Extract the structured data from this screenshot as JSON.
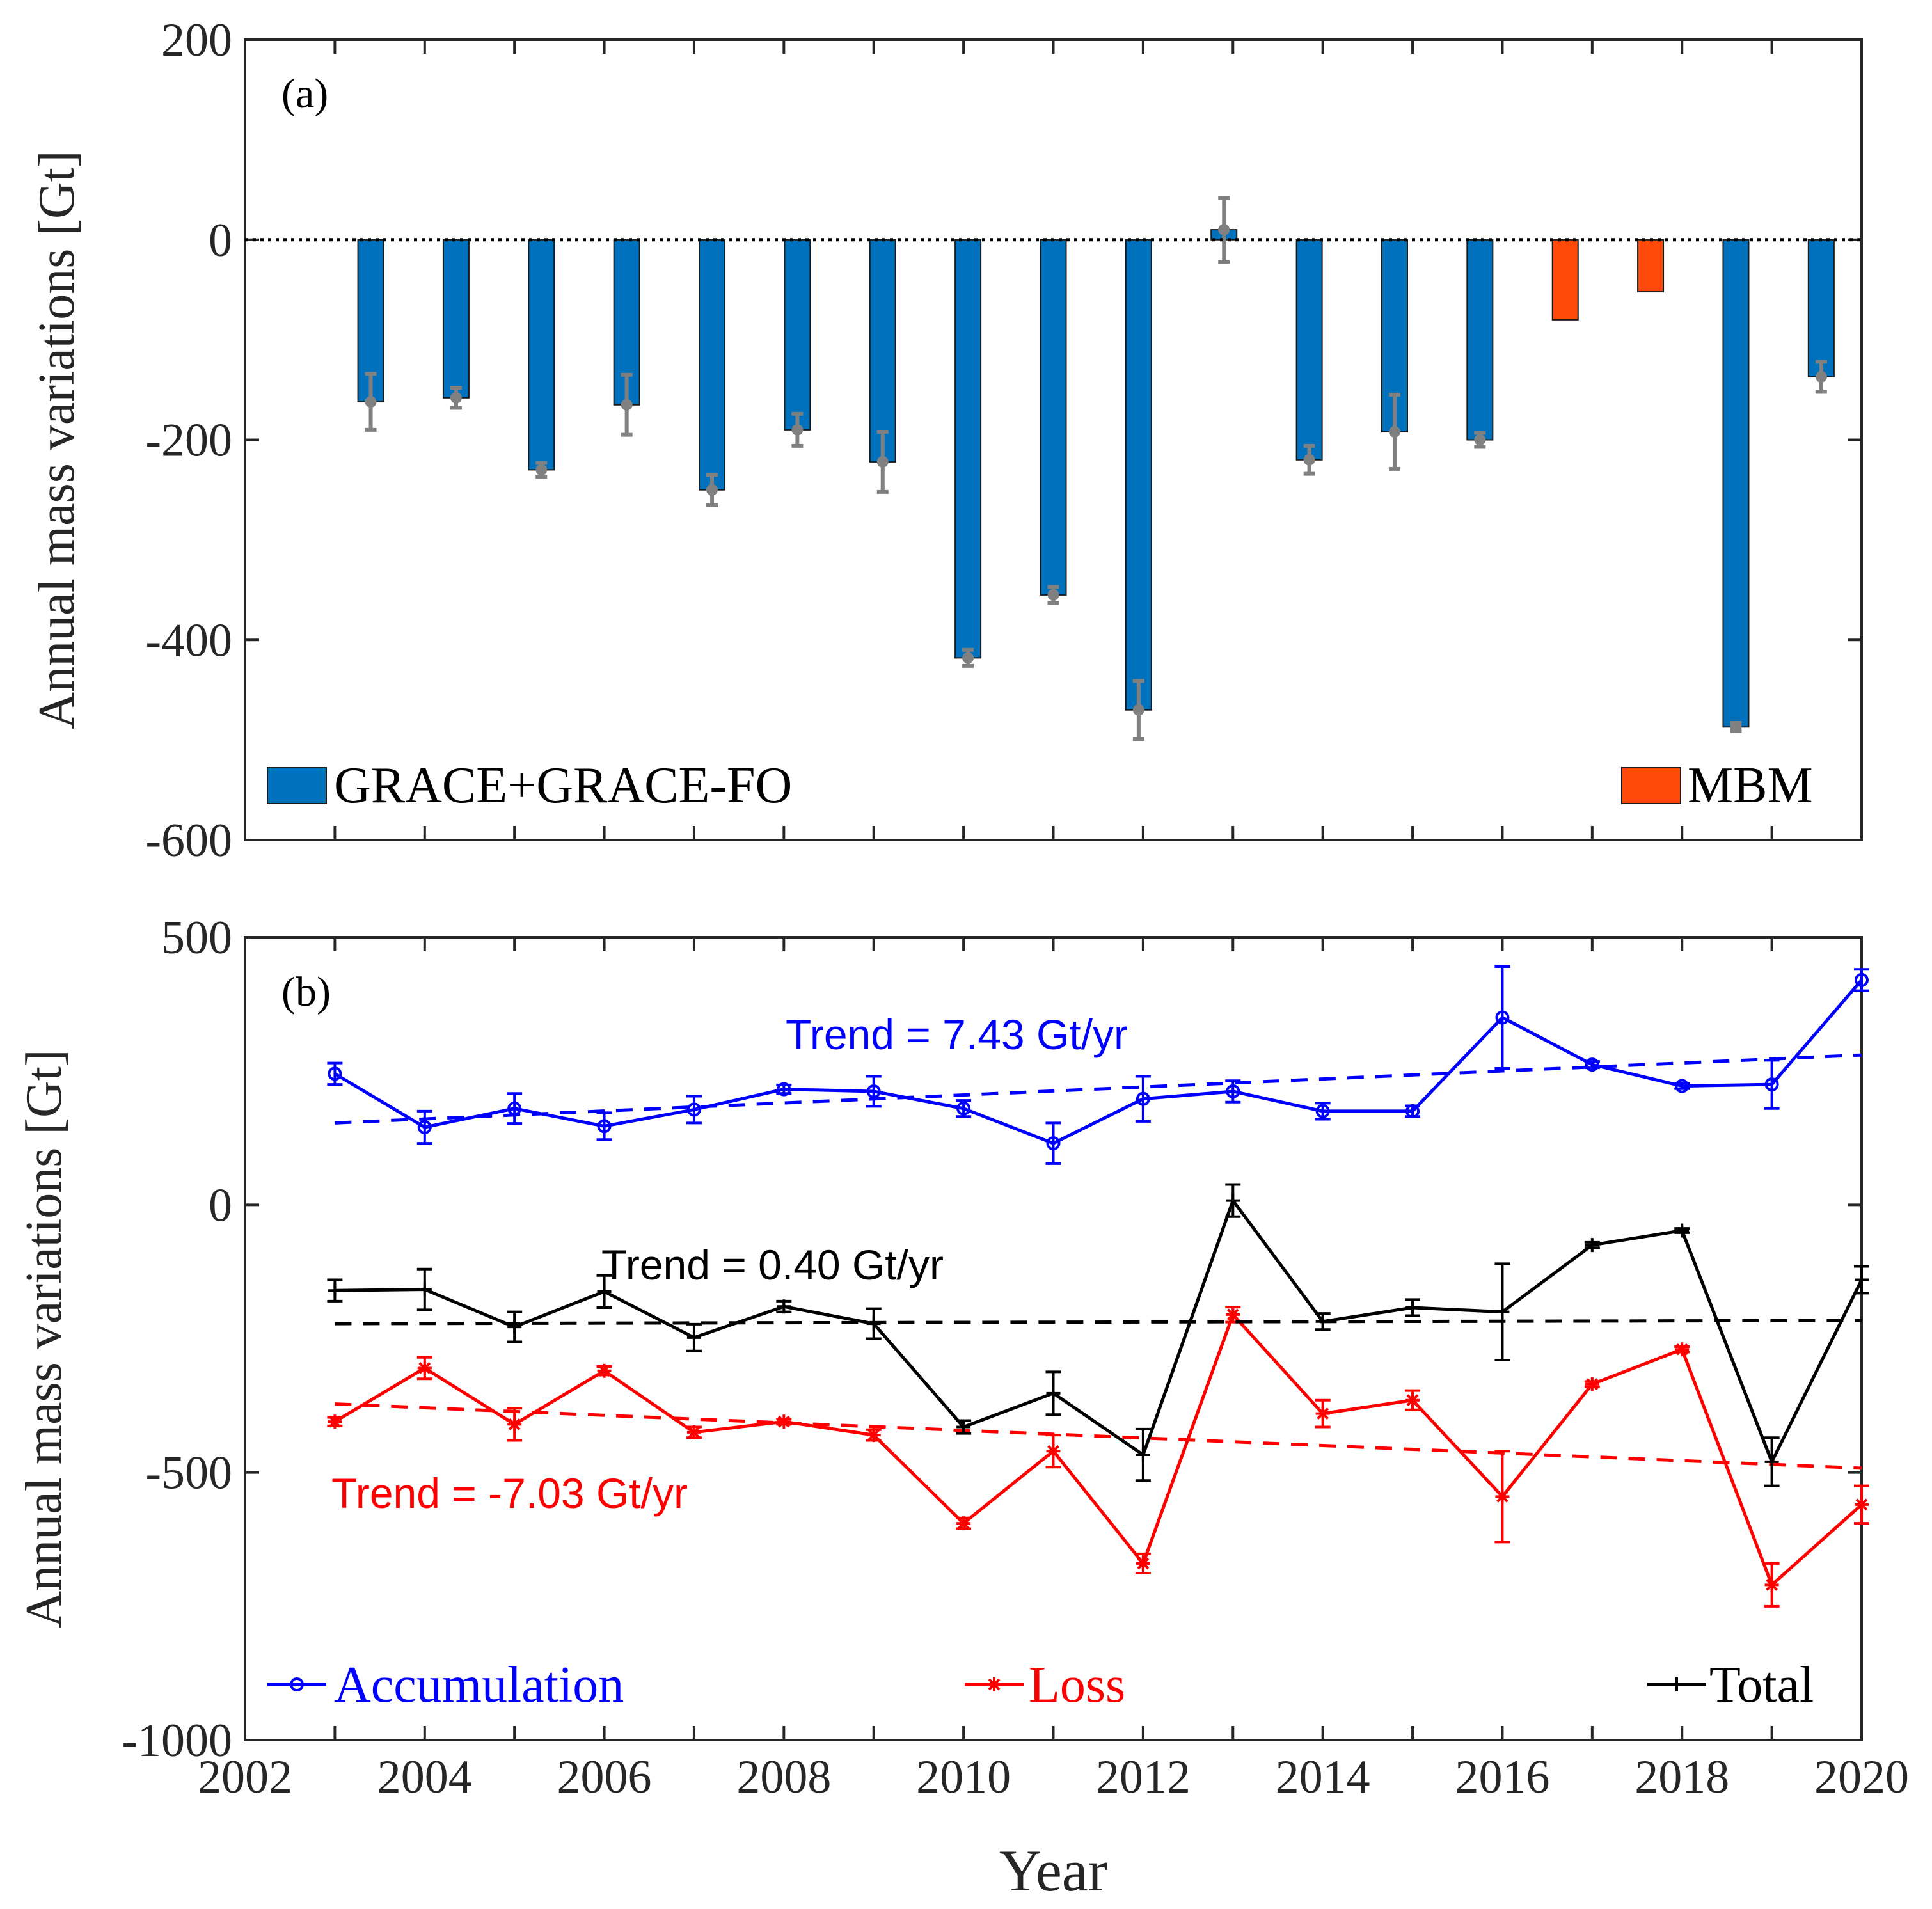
{
  "chart_data": [
    {
      "type": "bar",
      "panel_label": "(a)",
      "ylabel": "Annual mass variations [Gt]",
      "xlabel": "",
      "ylim": [
        -600,
        200
      ],
      "xlim": [
        2002,
        2020
      ],
      "yticks": [
        "200",
        "0",
        "-200",
        "-400",
        "-600"
      ],
      "ytick_values": [
        200,
        0,
        -200,
        -400,
        -600
      ],
      "zero_line": "dotted",
      "legend_placement": "bottom",
      "series": [
        {
          "name": "GRACE+GRACE-FO",
          "color": "#0072BD",
          "error_color": "#808080",
          "points": [
            {
              "x": 2003.4,
              "value": -162,
              "err": 28
            },
            {
              "x": 2004.35,
              "value": -158,
              "err": 10
            },
            {
              "x": 2005.3,
              "value": -230,
              "err": 7
            },
            {
              "x": 2006.25,
              "value": -165,
              "err": 30
            },
            {
              "x": 2007.2,
              "value": -250,
              "err": 15
            },
            {
              "x": 2008.15,
              "value": -190,
              "err": 16
            },
            {
              "x": 2009.1,
              "value": -222,
              "err": 30
            },
            {
              "x": 2010.05,
              "value": -418,
              "err": 8
            },
            {
              "x": 2011.0,
              "value": -355,
              "err": 8
            },
            {
              "x": 2011.95,
              "value": -470,
              "err": 29
            },
            {
              "x": 2012.9,
              "value": 10,
              "err": 32
            },
            {
              "x": 2013.85,
              "value": -220,
              "err": 14
            },
            {
              "x": 2014.8,
              "value": -192,
              "err": 37
            },
            {
              "x": 2015.75,
              "value": -200,
              "err": 7
            },
            {
              "x": 2018.6,
              "value": -487,
              "err": 4
            },
            {
              "x": 2019.55,
              "value": -137,
              "err": 15
            }
          ]
        },
        {
          "name": "MBM",
          "color": "#FF4A0A",
          "points": [
            {
              "x": 2016.7,
              "value": -80
            },
            {
              "x": 2017.65,
              "value": -52
            }
          ]
        }
      ]
    },
    {
      "type": "line",
      "panel_label": "(b)",
      "ylabel": "Annual mass variations [Gt]",
      "xlabel": "Year",
      "xlim": [
        2002,
        2020
      ],
      "ylim": [
        -1000,
        500
      ],
      "xticks": [
        "2002",
        "2004",
        "2006",
        "2008",
        "2010",
        "2012",
        "2014",
        "2016",
        "2018",
        "2020"
      ],
      "xtick_values": [
        2002,
        2004,
        2006,
        2008,
        2010,
        2012,
        2014,
        2016,
        2018,
        2020
      ],
      "yticks": [
        "500",
        "0",
        "-500",
        "-1000"
      ],
      "ytick_values": [
        500,
        0,
        -500,
        -1000
      ],
      "legend_placement": "bottom",
      "x": [
        2003,
        2004,
        2005,
        2006,
        2007,
        2008,
        2009,
        2010,
        2011,
        2012,
        2013,
        2014,
        2015,
        2016,
        2017,
        2018,
        2019,
        2020
      ],
      "series": [
        {
          "name": "Accumulation",
          "color": "#0000FF",
          "marker": "o",
          "values": [
            245,
            145,
            180,
            147,
            178,
            216,
            212,
            180,
            115,
            198,
            212,
            175,
            175,
            350,
            262,
            222,
            225,
            420
          ],
          "errors": [
            20,
            30,
            28,
            25,
            25,
            8,
            28,
            15,
            38,
            42,
            20,
            15,
            10,
            95,
            6,
            5,
            45,
            20
          ],
          "trend_label": "Trend = 7.43 Gt/yr",
          "trend_line": [
            [
              2003,
              153
            ],
            [
              2020,
              280
            ]
          ]
        },
        {
          "name": "Loss",
          "color": "#FF0000",
          "marker": "*",
          "values": [
            -405,
            -305,
            -410,
            -310,
            -425,
            -405,
            -430,
            -595,
            -460,
            -670,
            -205,
            -390,
            -365,
            -545,
            -335,
            -270,
            -710,
            -560
          ],
          "errors": [
            8,
            20,
            30,
            8,
            10,
            5,
            10,
            10,
            30,
            18,
            14,
            25,
            18,
            85,
            5,
            5,
            40,
            35
          ],
          "trend_label": "Trend = -7.03 Gt/yr",
          "trend_line": [
            [
              2003,
              -372
            ],
            [
              2020,
              -492
            ]
          ]
        },
        {
          "name": "Total",
          "color": "#000000",
          "marker": "+",
          "values": [
            -160,
            -158,
            -228,
            -162,
            -248,
            -190,
            -222,
            -415,
            -352,
            -467,
            8,
            -218,
            -192,
            -200,
            -75,
            -48,
            -480,
            -140
          ],
          "errors": [
            20,
            38,
            28,
            30,
            25,
            10,
            28,
            12,
            40,
            48,
            30,
            15,
            15,
            90,
            5,
            4,
            45,
            25
          ],
          "trend_label": "Trend = 0.40 Gt/yr",
          "trend_line": [
            [
              2003,
              -222
            ],
            [
              2020,
              -216
            ]
          ]
        }
      ]
    }
  ]
}
